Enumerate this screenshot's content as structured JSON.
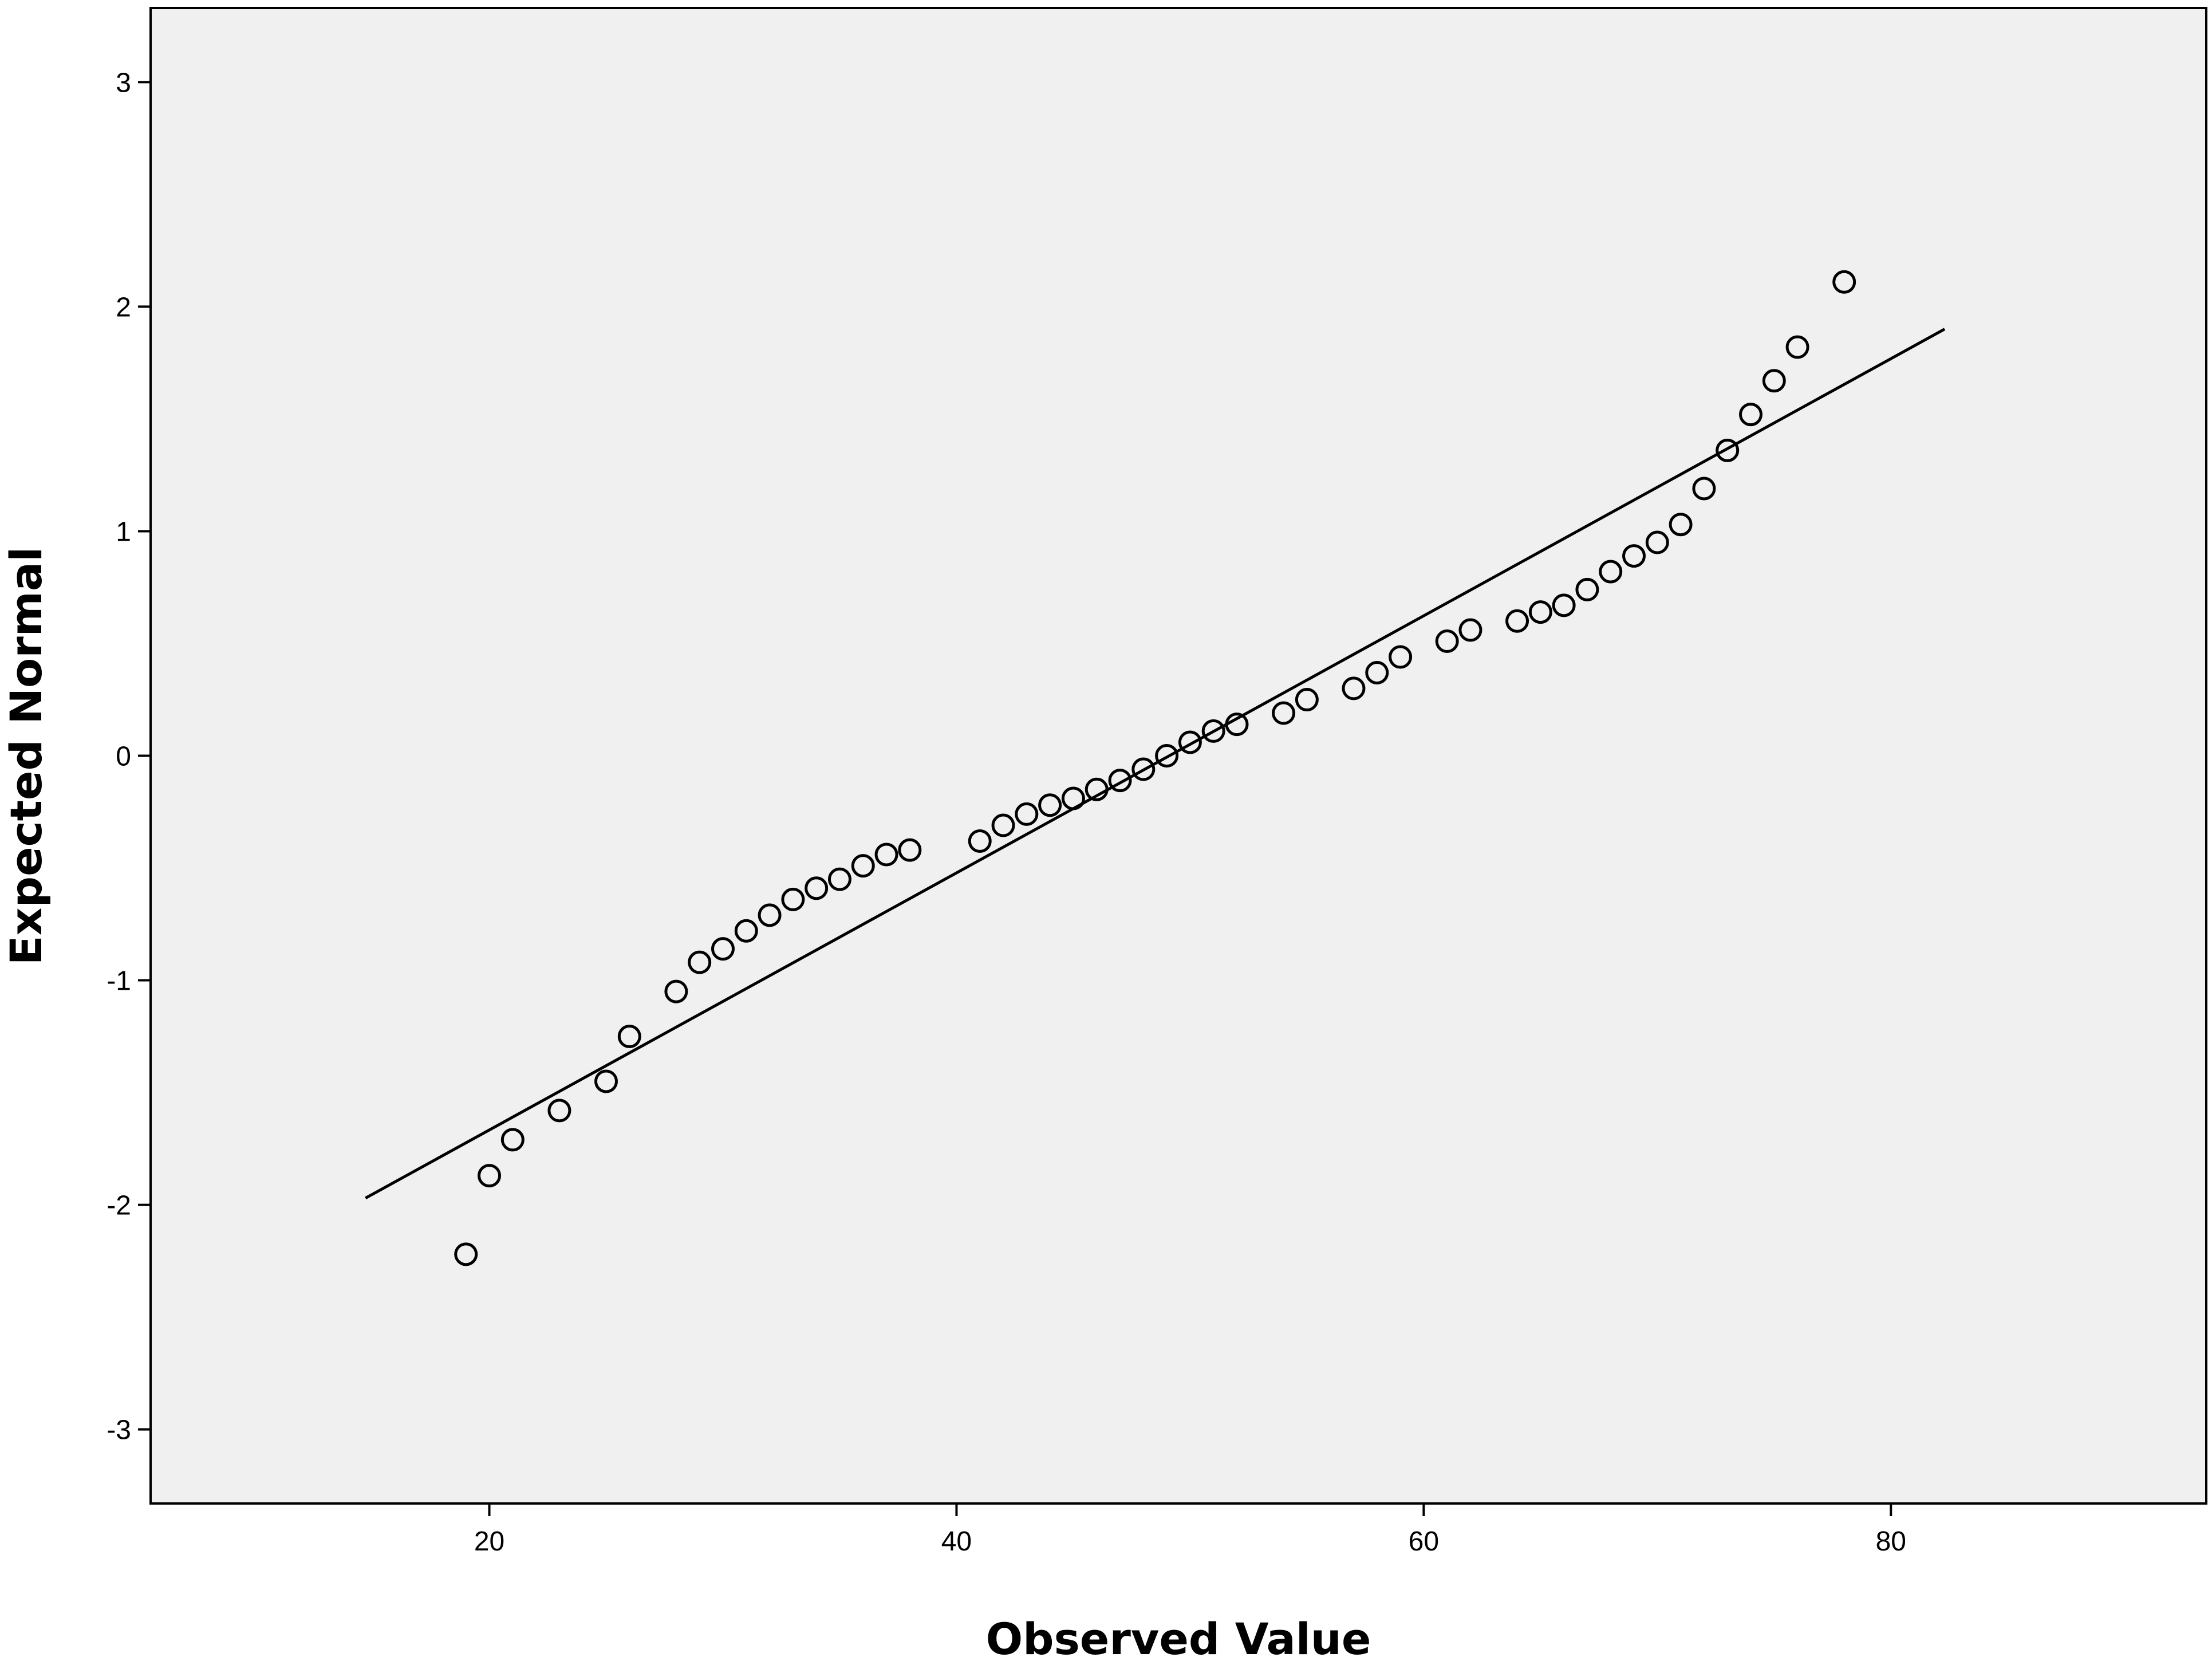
{
  "chart_data": {
    "type": "scatter",
    "title": "",
    "xlabel": "Observed Value",
    "ylabel": "Expected Normal",
    "xlim": [
      5.5,
      93.5
    ],
    "ylim": [
      -3.33,
      3.33
    ],
    "x_ticks": [
      20,
      40,
      60,
      80
    ],
    "y_ticks": [
      3,
      2,
      1,
      0,
      -1,
      -2,
      -3
    ],
    "x_tick_labels": [
      "20",
      "40",
      "60",
      "80"
    ],
    "y_tick_labels": [
      "3",
      "2",
      "1",
      "0",
      "-1",
      "-2",
      "-3"
    ],
    "grid": false,
    "legend": "none",
    "colors": {
      "plot_background": "#f0f0f0",
      "frame": "#000000",
      "marker_stroke": "#000000",
      "line": "#000000"
    },
    "points": [
      {
        "x": 19,
        "y": -2.22
      },
      {
        "x": 20,
        "y": -1.87
      },
      {
        "x": 21,
        "y": -1.71
      },
      {
        "x": 23,
        "y": -1.58
      },
      {
        "x": 25,
        "y": -1.45
      },
      {
        "x": 26,
        "y": -1.25
      },
      {
        "x": 28,
        "y": -1.05
      },
      {
        "x": 29,
        "y": -0.92
      },
      {
        "x": 30,
        "y": -0.86
      },
      {
        "x": 31,
        "y": -0.78
      },
      {
        "x": 32,
        "y": -0.71
      },
      {
        "x": 33,
        "y": -0.64
      },
      {
        "x": 34,
        "y": -0.59
      },
      {
        "x": 35,
        "y": -0.55
      },
      {
        "x": 36,
        "y": -0.49
      },
      {
        "x": 37,
        "y": -0.44
      },
      {
        "x": 38,
        "y": -0.42
      },
      {
        "x": 41,
        "y": -0.38
      },
      {
        "x": 42,
        "y": -0.31
      },
      {
        "x": 43,
        "y": -0.26
      },
      {
        "x": 44,
        "y": -0.22
      },
      {
        "x": 45,
        "y": -0.19
      },
      {
        "x": 46,
        "y": -0.15
      },
      {
        "x": 47,
        "y": -0.11
      },
      {
        "x": 48,
        "y": -0.06
      },
      {
        "x": 49,
        "y": 0.0
      },
      {
        "x": 50,
        "y": 0.06
      },
      {
        "x": 51,
        "y": 0.11
      },
      {
        "x": 52,
        "y": 0.14
      },
      {
        "x": 54,
        "y": 0.19
      },
      {
        "x": 55,
        "y": 0.25
      },
      {
        "x": 57,
        "y": 0.3
      },
      {
        "x": 58,
        "y": 0.37
      },
      {
        "x": 59,
        "y": 0.44
      },
      {
        "x": 61,
        "y": 0.51
      },
      {
        "x": 62,
        "y": 0.56
      },
      {
        "x": 64,
        "y": 0.6
      },
      {
        "x": 65,
        "y": 0.64
      },
      {
        "x": 66,
        "y": 0.67
      },
      {
        "x": 67,
        "y": 0.74
      },
      {
        "x": 68,
        "y": 0.82
      },
      {
        "x": 69,
        "y": 0.89
      },
      {
        "x": 70,
        "y": 0.95
      },
      {
        "x": 71,
        "y": 1.03
      },
      {
        "x": 72,
        "y": 1.19
      },
      {
        "x": 73,
        "y": 1.36
      },
      {
        "x": 74,
        "y": 1.52
      },
      {
        "x": 75,
        "y": 1.67
      },
      {
        "x": 76,
        "y": 1.82
      },
      {
        "x": 78,
        "y": 2.11
      }
    ],
    "reference_line": [
      {
        "x": 14.7,
        "y": -1.97
      },
      {
        "x": 82.3,
        "y": 1.9
      }
    ]
  }
}
